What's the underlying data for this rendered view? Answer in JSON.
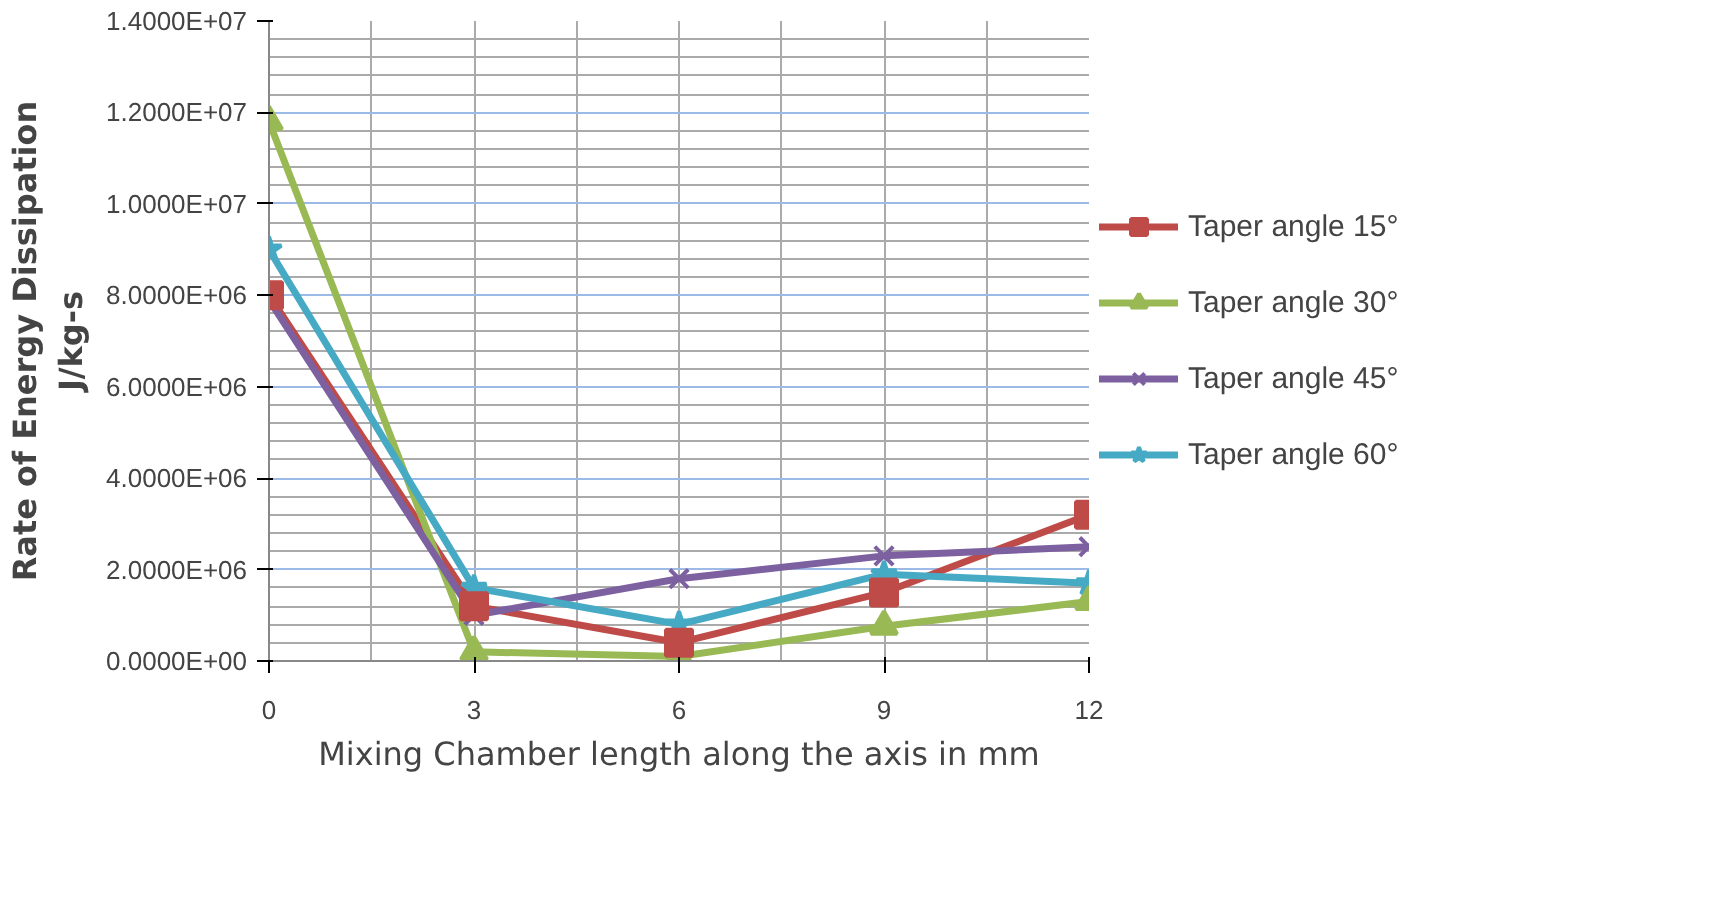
{
  "chart_data": {
    "type": "line",
    "xlabel": "Mixing Chamber length along the axis in mm",
    "ylabel": "Rate of Energy Dissipation\nJ/kg-s",
    "x": [
      0,
      3,
      6,
      9,
      12
    ],
    "series": [
      {
        "name": "Taper angle 15°",
        "color": "#be4b48",
        "marker": "square",
        "values": [
          8000000,
          1200000,
          400000,
          1500000,
          3200000
        ]
      },
      {
        "name": "Taper angle 30°",
        "color": "#98b954",
        "marker": "triangle",
        "values": [
          11800000,
          200000,
          100000,
          760000,
          1300000
        ]
      },
      {
        "name": "Taper angle 45°",
        "color": "#7d60a0",
        "marker": "cross",
        "values": [
          7900000,
          1000000,
          1800000,
          2300000,
          2500000
        ]
      },
      {
        "name": "Taper angle 60°",
        "color": "#46aac5",
        "marker": "star",
        "values": [
          9000000,
          1600000,
          800000,
          1900000,
          1700000
        ]
      }
    ],
    "xlim": [
      0,
      12
    ],
    "xticks": [
      0,
      3,
      6,
      9,
      12
    ],
    "ylim": [
      0,
      14000000
    ],
    "yticks": [
      {
        "value": 0,
        "label": "0.0000E+00"
      },
      {
        "value": 2000000,
        "label": "2.0000E+06"
      },
      {
        "value": 4000000,
        "label": "4.0000E+06"
      },
      {
        "value": 6000000,
        "label": "6.0000E+06"
      },
      {
        "value": 8000000,
        "label": "8.0000E+06"
      },
      {
        "value": 10000000,
        "label": "1.0000E+07"
      },
      {
        "value": 12000000,
        "label": "1.2000E+07"
      },
      {
        "value": 14000000,
        "label": "1.4000E+07"
      }
    ],
    "grid": true,
    "legend": "right"
  }
}
